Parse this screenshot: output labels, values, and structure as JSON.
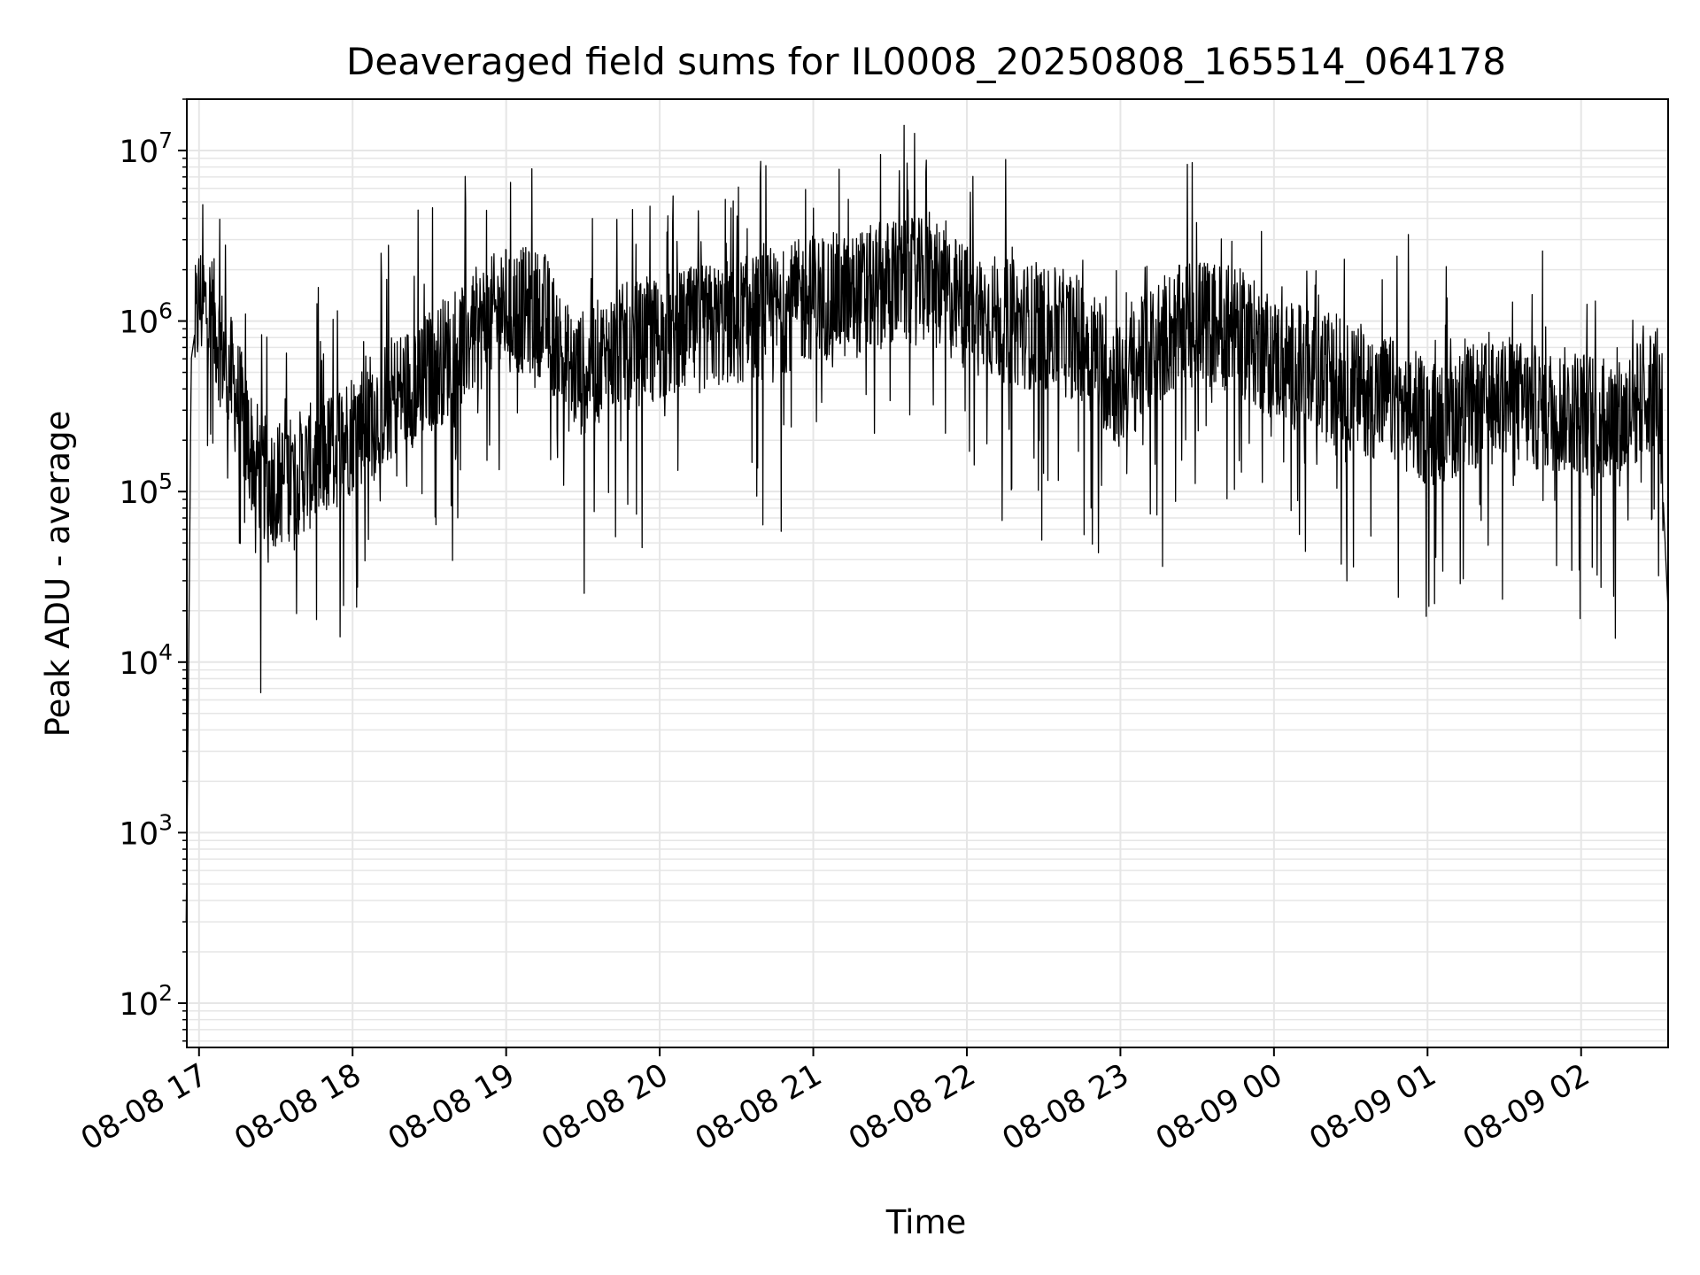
{
  "chart_data": {
    "type": "line",
    "title": "Deaveraged field sums for IL0008_20250808_165514_064178",
    "xlabel": "Time",
    "ylabel": "Peak ADU - average",
    "yscale": "log",
    "ylim": [
      55,
      20000000
    ],
    "xlim": [
      "2025-08-08 16:55:14",
      "2025-08-09 02:34:00"
    ],
    "grid": true,
    "line_color": "#000000",
    "grid_color": "#e6e6e6",
    "x_tick_labels": [
      "08-08 17",
      "08-08 18",
      "08-08 19",
      "08-08 20",
      "08-08 21",
      "08-08 22",
      "08-08 23",
      "08-09 00",
      "08-09 01",
      "08-09 02"
    ],
    "x_tick_times": [
      "2025-08-08 17:00",
      "2025-08-08 18:00",
      "2025-08-08 19:00",
      "2025-08-08 20:00",
      "2025-08-08 21:00",
      "2025-08-08 22:00",
      "2025-08-08 23:00",
      "2025-08-09 00:00",
      "2025-08-09 01:00",
      "2025-08-09 02:00"
    ],
    "y_ticks": [
      {
        "base": "10",
        "exp": "2",
        "value": 100
      },
      {
        "base": "10",
        "exp": "3",
        "value": 1000
      },
      {
        "base": "10",
        "exp": "4",
        "value": 10000
      },
      {
        "base": "10",
        "exp": "5",
        "value": 100000
      },
      {
        "base": "10",
        "exp": "6",
        "value": 1000000
      },
      {
        "base": "10",
        "exp": "7",
        "value": 10000000
      }
    ],
    "series": [
      {
        "x": [
          "2025-08-08 16:55",
          "2025-08-08 16:57",
          "2025-08-08 17:00",
          "2025-08-08 17:05",
          "2025-08-08 17:10",
          "2025-08-08 17:15",
          "2025-08-08 17:20",
          "2025-08-08 17:25",
          "2025-08-08 17:30",
          "2025-08-08 17:40",
          "2025-08-08 17:50",
          "2025-08-08 18:00",
          "2025-08-08 18:15",
          "2025-08-08 18:30",
          "2025-08-08 18:45",
          "2025-08-08 19:00",
          "2025-08-08 19:15",
          "2025-08-08 19:25",
          "2025-08-08 19:30",
          "2025-08-08 19:45",
          "2025-08-08 20:00",
          "2025-08-08 20:15",
          "2025-08-08 20:30",
          "2025-08-08 20:45",
          "2025-08-08 21:00",
          "2025-08-08 21:15",
          "2025-08-08 21:30",
          "2025-08-08 21:45",
          "2025-08-08 22:00",
          "2025-08-08 22:15",
          "2025-08-08 22:30",
          "2025-08-08 22:45",
          "2025-08-08 23:00",
          "2025-08-08 23:15",
          "2025-08-08 23:30",
          "2025-08-08 23:45",
          "2025-08-09 00:00",
          "2025-08-09 00:15",
          "2025-08-09 00:30",
          "2025-08-09 00:45",
          "2025-08-09 01:00",
          "2025-08-09 01:15",
          "2025-08-09 01:30",
          "2025-08-09 01:45",
          "2025-08-09 02:00",
          "2025-08-09 02:15",
          "2025-08-09 02:30",
          "2025-08-09 02:34"
        ],
        "y": [
          300,
          600000,
          1300000,
          1100000,
          600000,
          350000,
          180000,
          120000,
          110000,
          130000,
          160000,
          230000,
          350000,
          500000,
          800000,
          1200000,
          1100000,
          500000,
          500000,
          700000,
          800000,
          900000,
          1000000,
          1100000,
          1400000,
          1400000,
          1700000,
          1700000,
          1200000,
          1000000,
          900000,
          800000,
          400000,
          800000,
          1000000,
          900000,
          600000,
          500000,
          400000,
          350000,
          250000,
          300000,
          350000,
          300000,
          300000,
          250000,
          450000,
          20000
        ]
      }
    ]
  }
}
